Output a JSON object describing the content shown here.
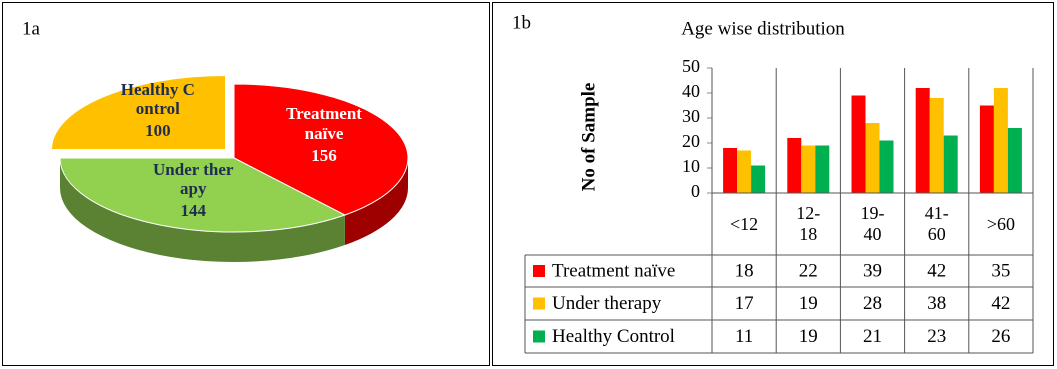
{
  "chart_data": [
    {
      "type": "pie",
      "label": "1a",
      "categories": [
        "Treatment naïve",
        "Under therapy",
        "Healthy Control"
      ],
      "values": [
        156,
        144,
        100
      ],
      "colors": [
        "#ff0000",
        "#92d050",
        "#ffc000"
      ],
      "label_colors": [
        "#ffffff",
        "#1f2d50",
        "#1f2d50"
      ],
      "exploded": [
        false,
        false,
        true
      ]
    },
    {
      "type": "bar",
      "label": "1b",
      "title": "Age wise distribution",
      "y_label": "No of Sample",
      "categories": [
        "<12",
        "12-18",
        "19-40",
        "41-60",
        ">60"
      ],
      "series": [
        {
          "name": "Treatment naïve",
          "color": "#ff0000",
          "values": [
            18,
            22,
            39,
            42,
            35
          ]
        },
        {
          "name": "Under therapy",
          "color": "#ffc000",
          "values": [
            17,
            19,
            28,
            38,
            42
          ]
        },
        {
          "name": "Healthy Control",
          "color": "#00b050",
          "values": [
            11,
            19,
            21,
            23,
            26
          ]
        }
      ],
      "ylim": [
        0,
        50
      ],
      "yticks": [
        0,
        10,
        20,
        30,
        40,
        50
      ],
      "data_table": true
    }
  ]
}
